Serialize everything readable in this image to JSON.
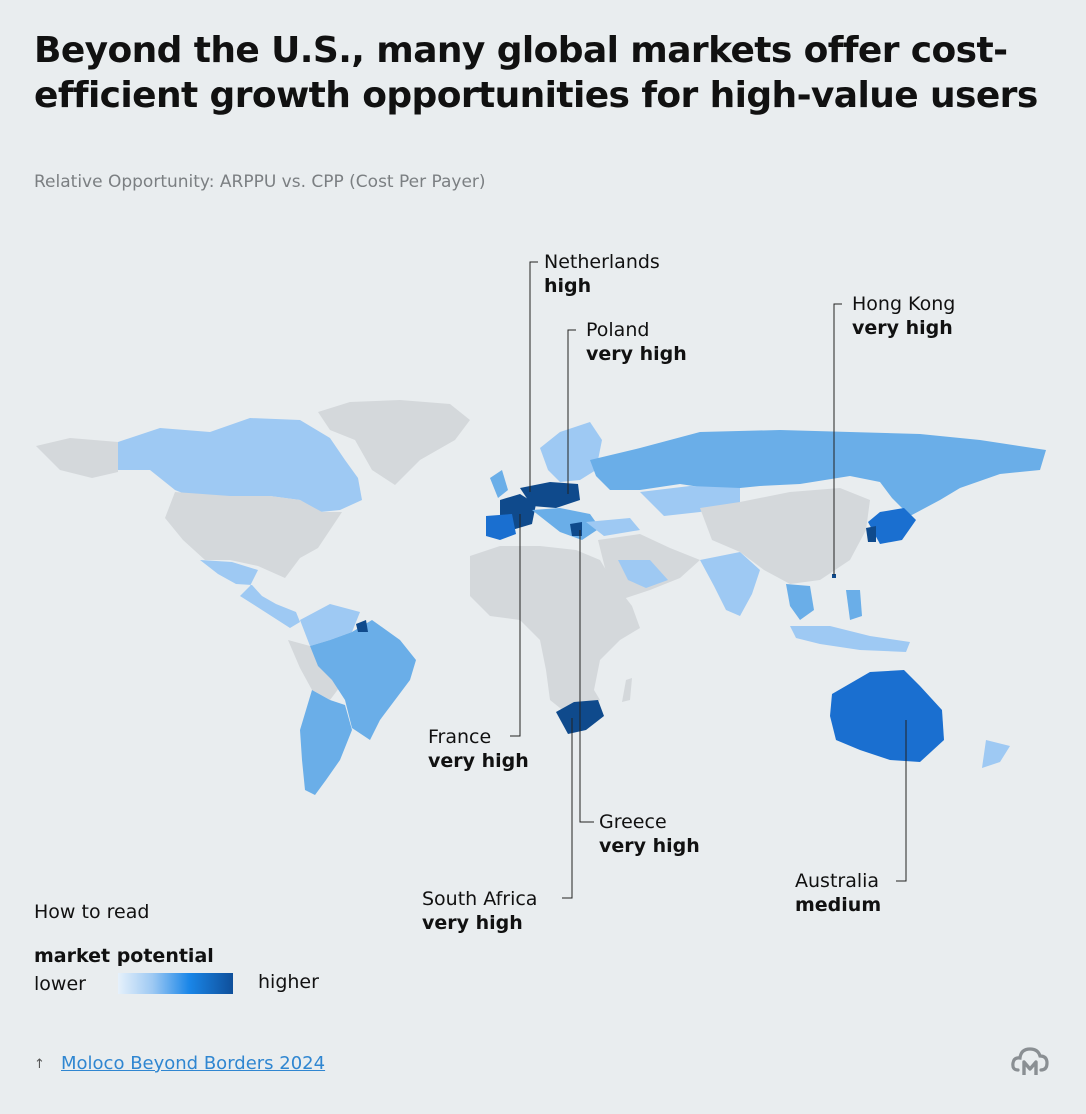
{
  "header": {
    "title": "Beyond the U.S., many global markets offer cost-efficient growth opportunities for high-value users",
    "subtitle": "Relative Opportunity: ARPPU vs. CPP (Cost Per Payer)"
  },
  "colors": {
    "background": "#e9edef",
    "land_no_data": "#d4d8db",
    "lowest": "#cfe5fb",
    "low": "#9ec9f3",
    "medium_low": "#6aaee8",
    "medium": "#1a6fd0",
    "high": "#155fb5",
    "very_high": "#0f4a8c"
  },
  "callouts": [
    {
      "key": "netherlands",
      "name": "Netherlands",
      "level": "high"
    },
    {
      "key": "poland",
      "name": "Poland",
      "level": "very high"
    },
    {
      "key": "hong_kong",
      "name": "Hong Kong",
      "level": "very high"
    },
    {
      "key": "france",
      "name": "France",
      "level": "very high"
    },
    {
      "key": "greece",
      "name": "Greece",
      "level": "very high"
    },
    {
      "key": "south_africa",
      "name": "South Africa",
      "level": "very high"
    },
    {
      "key": "australia",
      "name": "Australia",
      "level": "medium"
    }
  ],
  "legend": {
    "intro": "How to read",
    "heading": "market potential",
    "lower_label": "lower",
    "higher_label": "higher"
  },
  "source": {
    "arrow": "↑",
    "label": "Moloco Beyond Borders 2024"
  },
  "logo": {
    "icon": "moloco-cloud-m-logo"
  }
}
